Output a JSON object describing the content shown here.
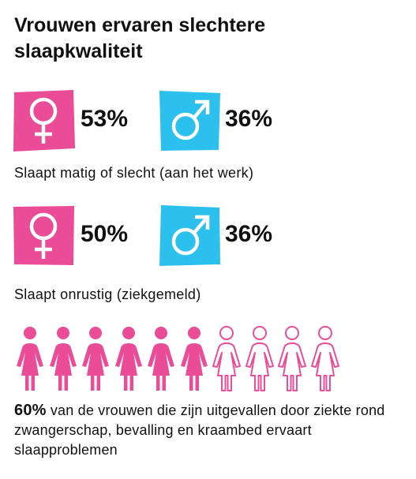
{
  "title": "Vrouwen ervaren slechtere slaapkwaliteit",
  "colors": {
    "female": "#ea4c98",
    "male": "#2cc0ef",
    "text": "#111111"
  },
  "stat_groups": [
    {
      "female": {
        "icon": "female-symbol-icon",
        "value": "53%"
      },
      "male": {
        "icon": "male-symbol-icon",
        "value": "36%"
      },
      "caption": "Slaapt matig of slecht (aan het werk)"
    },
    {
      "female": {
        "icon": "female-symbol-icon",
        "value": "50%"
      },
      "male": {
        "icon": "male-symbol-icon",
        "value": "36%"
      },
      "caption": "Slaapt onrustig (ziekgemeld)"
    }
  ],
  "pictogram": {
    "icon": "woman-figure-icon",
    "total": 10,
    "filled": 6
  },
  "bottom": {
    "highlight": "60%",
    "text": " van de vrouwen die zijn uitgevallen door ziekte rond zwangerschap, bevalling en kraambed ervaart slaapproblemen"
  }
}
